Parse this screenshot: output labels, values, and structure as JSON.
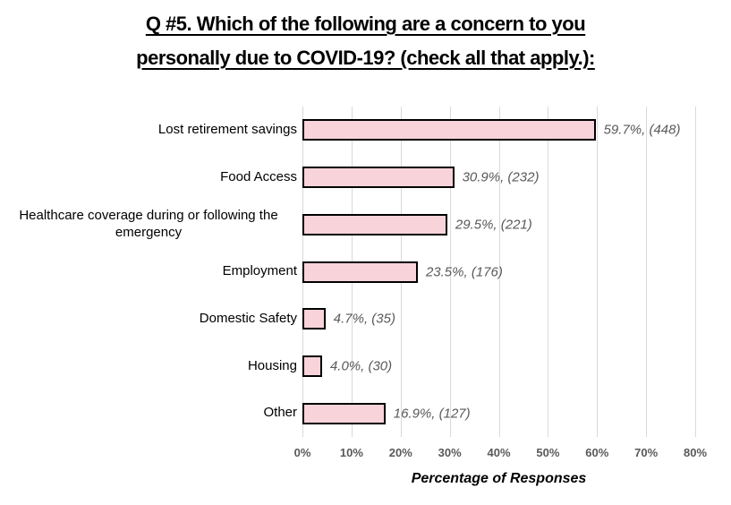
{
  "title": {
    "line1": "Q #5. Which of the following are a concern to you",
    "line2": "personally due to COVID-19? (check all that apply.):"
  },
  "chart_data": {
    "type": "bar",
    "orientation": "horizontal",
    "title": "Q #5. Which of the following are a concern to you personally due to COVID-19? (check all that apply.):",
    "categories": [
      "Lost retirement savings",
      "Food Access",
      "Healthcare coverage during or following the emergency",
      "Employment",
      "Domestic Safety",
      "Housing",
      "Other"
    ],
    "values": [
      59.7,
      30.9,
      29.5,
      23.5,
      4.7,
      4.0,
      16.9
    ],
    "counts": [
      448,
      232,
      221,
      176,
      35,
      30,
      127
    ],
    "data_labels": [
      "59.7%, (448)",
      "30.9%, (232)",
      "29.5%, (221)",
      "23.5%, (176)",
      "4.7%, (35)",
      "4.0%, (30)",
      "16.9%, (127)"
    ],
    "xlabel": "Percentage of Responses",
    "ylabel": "",
    "xlim": [
      0,
      80
    ],
    "xtick_labels": [
      "0%",
      "10%",
      "20%",
      "30%",
      "40%",
      "50%",
      "60%",
      "70%",
      "80%"
    ],
    "grid": true,
    "legend": false
  },
  "colors": {
    "bar_fill": "#f8d3da",
    "bar_border": "#000000",
    "gridline": "#d9d9d9",
    "tick_text": "#595959",
    "value_text": "#595959",
    "title_text": "#000000"
  }
}
